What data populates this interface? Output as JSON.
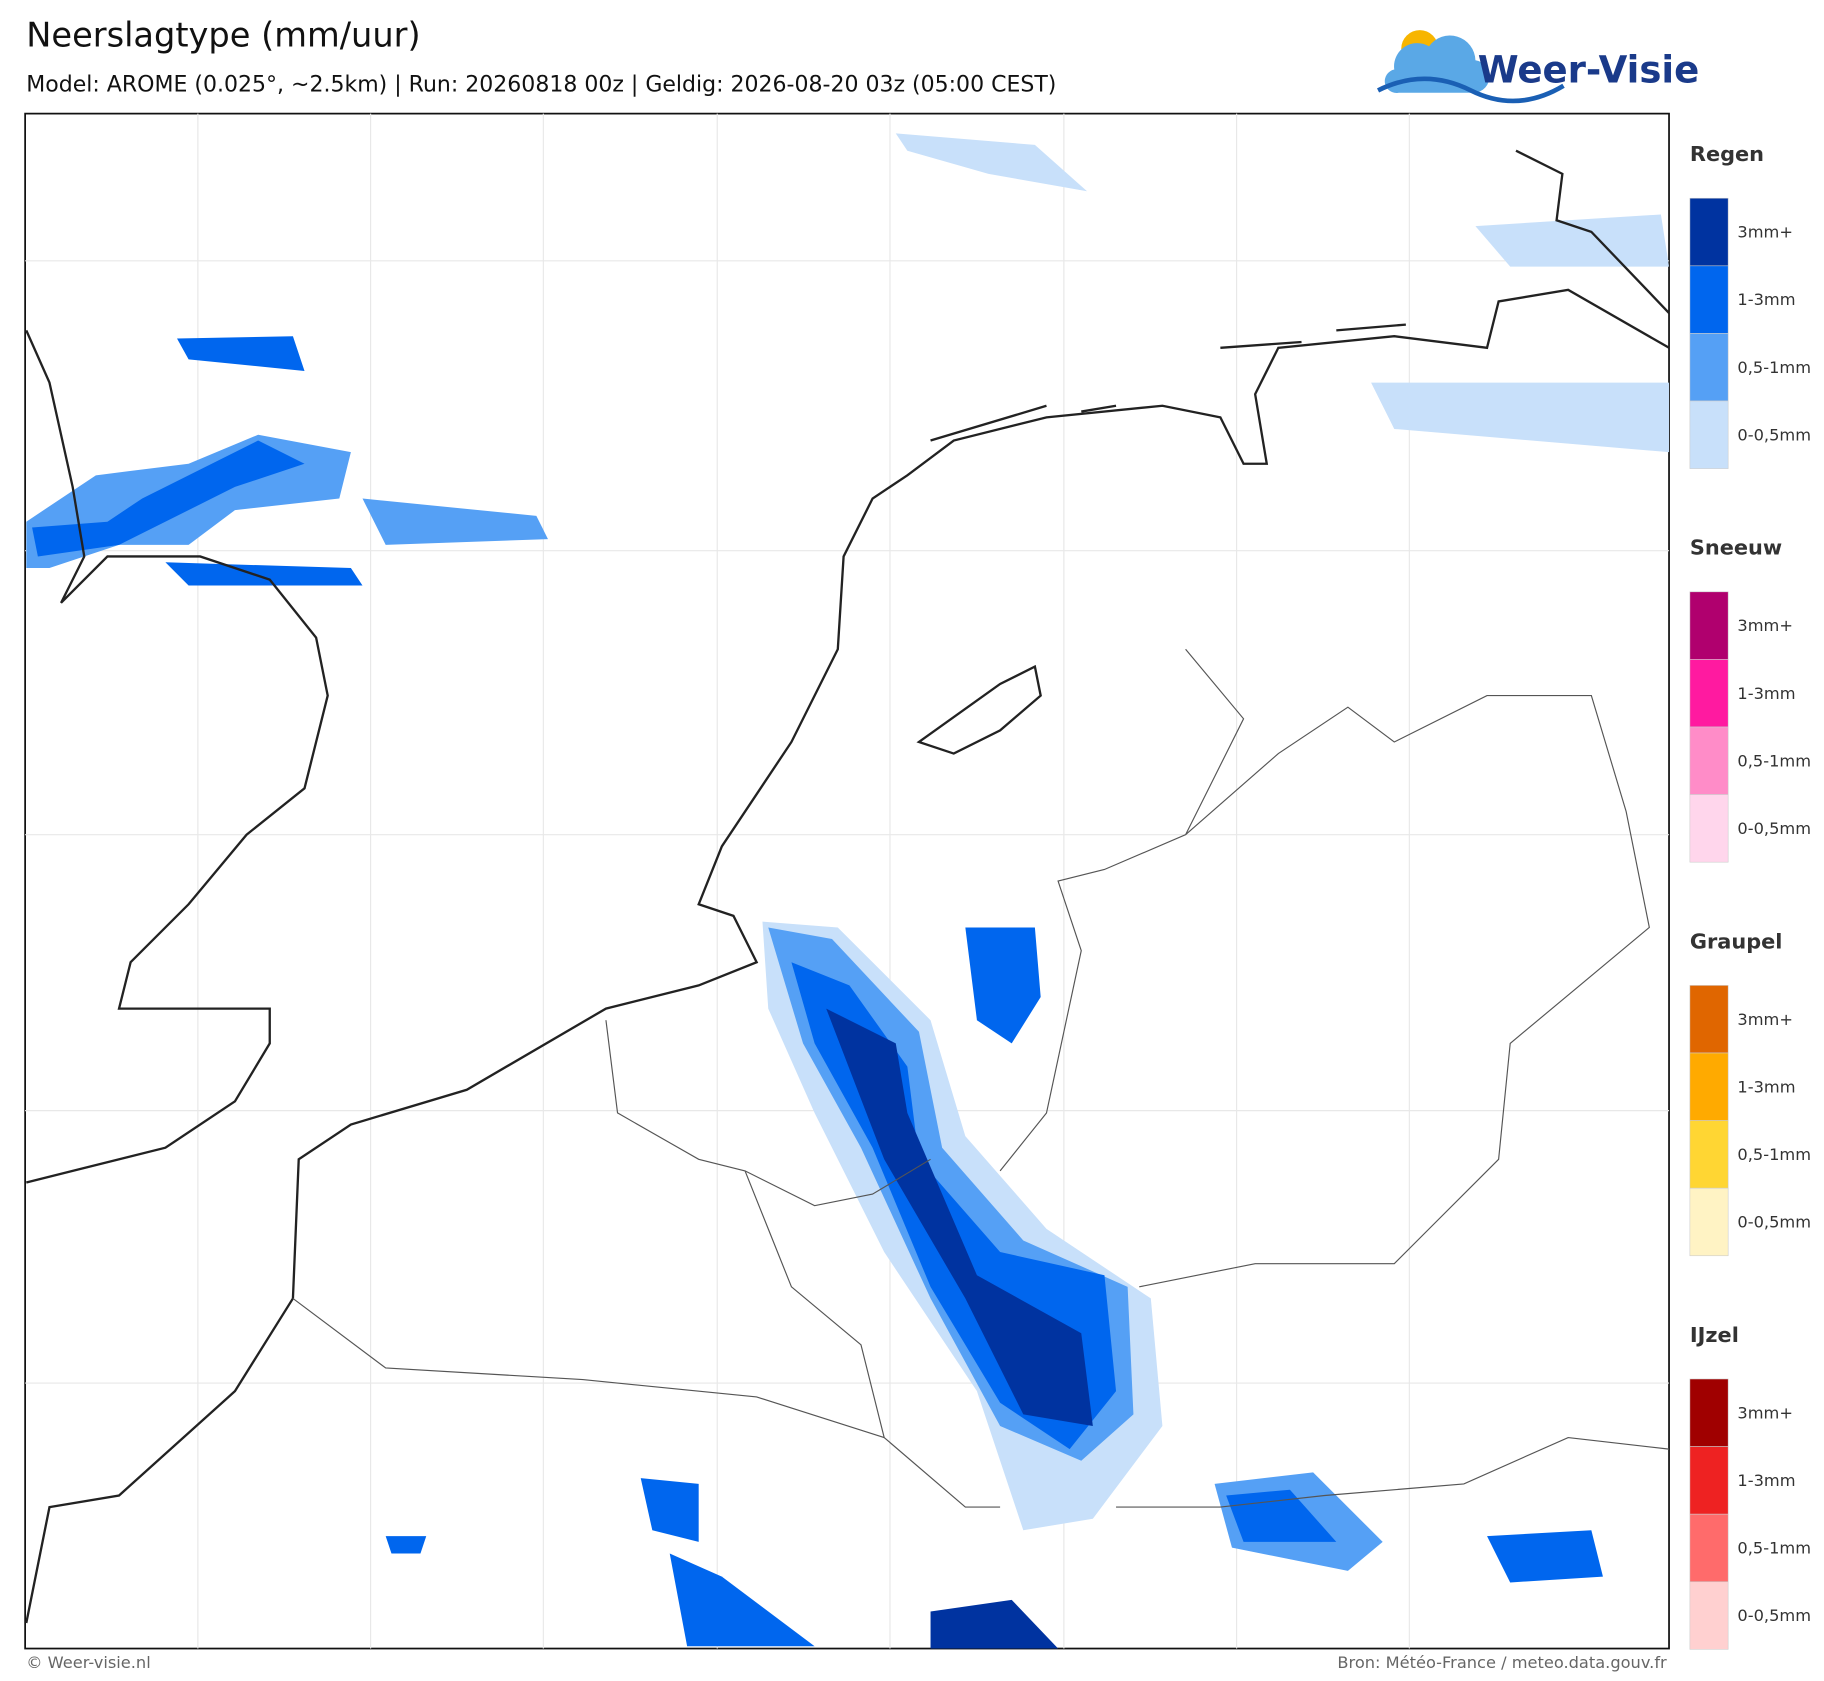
{
  "header": {
    "title": "Neerslagtype (mm/uur)",
    "subtitle": "Model: AROME (0.025°, ~2.5km)  |  Run: 20260818 00z  |  Geldig: 2026-08-20 03z (05:00 CEST)",
    "logo": "Weer-Visie"
  },
  "legend": [
    {
      "title": "Regen",
      "items": [
        {
          "label": "3mm+",
          "color": "#0033a0"
        },
        {
          "label": "1-3mm",
          "color": "#0066ee"
        },
        {
          "label": "0,5-1mm",
          "color": "#55a0f5"
        },
        {
          "label": "0-0,5mm",
          "color": "#c8e0fa"
        }
      ]
    },
    {
      "title": "Sneeuw",
      "items": [
        {
          "label": "3mm+",
          "color": "#b0006e"
        },
        {
          "label": "1-3mm",
          "color": "#ff1aa0"
        },
        {
          "label": "0,5-1mm",
          "color": "#ff8cc8"
        },
        {
          "label": "0-0,5mm",
          "color": "#ffd6ec"
        }
      ]
    },
    {
      "title": "Graupel",
      "items": [
        {
          "label": "3mm+",
          "color": "#e06600"
        },
        {
          "label": "1-3mm",
          "color": "#ffaa00"
        },
        {
          "label": "0,5-1mm",
          "color": "#ffd633"
        },
        {
          "label": "0-0,5mm",
          "color": "#fff3c4"
        }
      ]
    },
    {
      "title": "IJzel",
      "items": [
        {
          "label": "3mm+",
          "color": "#a00000"
        },
        {
          "label": "1-3mm",
          "color": "#ee2222"
        },
        {
          "label": "0,5-1mm",
          "color": "#ff6b6b"
        },
        {
          "label": "0-0,5mm",
          "color": "#ffd0d0"
        }
      ]
    }
  ],
  "footer": {
    "left": "© Weer-visie.nl",
    "right": "Bron: Météo-France / meteo.data.gouv.fr"
  }
}
